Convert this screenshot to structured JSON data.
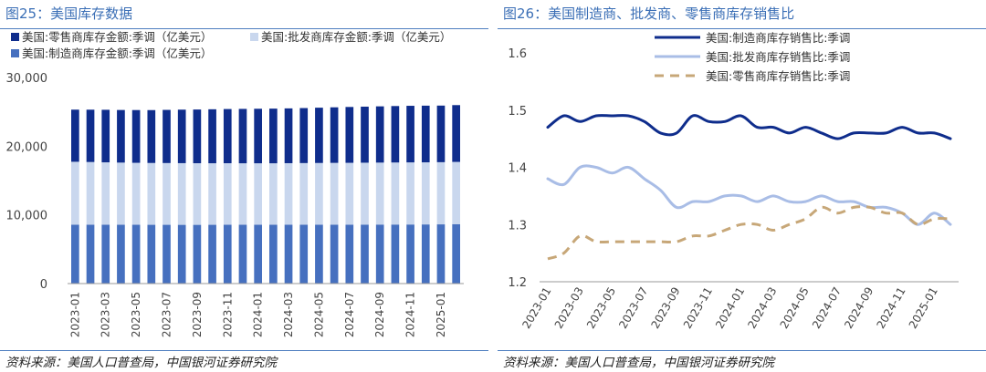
{
  "left": {
    "title": "图25：美国库存数据",
    "source": "资料来源：美国人口普查局，中国银河证券研究院"
  },
  "right": {
    "title": "图26：美国制造商、批发商、零售商库存销售比",
    "source": "资料来源：美国人口普查局，中国银河证券研究院"
  },
  "colors": {
    "title_blue": "#3b6fb6",
    "bar_retail": "#0f2d8c",
    "bar_wholesale": "#c9d7ee",
    "bar_manufacturing": "#4670bf",
    "line_manufacturing": "#0f2d8c",
    "line_wholesale": "#a9bde6",
    "line_retail": "#c7a778"
  },
  "chart_data": [
    {
      "type": "bar",
      "stacked": true,
      "categories": [
        "2023-01",
        "2023-02",
        "2023-03",
        "2023-04",
        "2023-05",
        "2023-06",
        "2023-07",
        "2023-08",
        "2023-09",
        "2023-10",
        "2023-11",
        "2023-12",
        "2024-01",
        "2024-02",
        "2024-03",
        "2024-04",
        "2024-05",
        "2024-06",
        "2024-07",
        "2024-08",
        "2024-09",
        "2024-10",
        "2024-11",
        "2024-12",
        "2025-01",
        "2025-02"
      ],
      "tick_labels": [
        "2023-01",
        "2023-03",
        "2023-05",
        "2023-07",
        "2023-09",
        "2023-11",
        "2024-01",
        "2024-03",
        "2024-05",
        "2024-07",
        "2024-09",
        "2024-11",
        "2025-01"
      ],
      "series": [
        {
          "name": "美国:制造商库存金额:季调（亿美元）",
          "values": [
            8580,
            8575,
            8570,
            8560,
            8560,
            8555,
            8555,
            8550,
            8550,
            8555,
            8560,
            8560,
            8560,
            8560,
            8565,
            8570,
            8575,
            8580,
            8580,
            8585,
            8590,
            8595,
            8600,
            8610,
            8620,
            8650
          ]
        },
        {
          "name": "美国:批发商库存金额:季调（亿美元）",
          "values": [
            9150,
            9120,
            9080,
            9050,
            9020,
            9000,
            8990,
            8980,
            8970,
            8960,
            8960,
            8950,
            8950,
            8950,
            8960,
            8970,
            8980,
            8990,
            9000,
            9010,
            9020,
            9030,
            9040,
            9040,
            9050,
            9060
          ]
        },
        {
          "name": "美国:零售商库存金额:季调（亿美元）",
          "values": [
            7590,
            7620,
            7650,
            7660,
            7680,
            7700,
            7740,
            7790,
            7820,
            7860,
            7890,
            7920,
            7940,
            7960,
            7980,
            8010,
            8050,
            8090,
            8130,
            8160,
            8190,
            8220,
            8240,
            8250,
            8240,
            8270
          ]
        }
      ],
      "legend": {
        "series_order": [
          2,
          1,
          0
        ],
        "rows": [
          [
            "美国:零售商库存金额:季调（亿美元）",
            "美国:批发商库存金额:季调（亿美元）"
          ],
          [
            "美国:制造商库存金额:季调（亿美元）"
          ]
        ]
      },
      "ylim": [
        0,
        30000
      ],
      "yticks": [
        0,
        10000,
        20000,
        30000
      ],
      "ytick_labels": [
        "0",
        "10,000",
        "20,000",
        "30,000"
      ],
      "legend_position": "top-left",
      "grid": false
    },
    {
      "type": "line",
      "x": [
        "2023-01",
        "2023-02",
        "2023-03",
        "2023-04",
        "2023-05",
        "2023-06",
        "2023-07",
        "2023-08",
        "2023-09",
        "2023-10",
        "2023-11",
        "2023-12",
        "2024-01",
        "2024-02",
        "2024-03",
        "2024-04",
        "2024-05",
        "2024-06",
        "2024-07",
        "2024-08",
        "2024-09",
        "2024-10",
        "2024-11",
        "2024-12",
        "2025-01",
        "2025-02"
      ],
      "tick_labels": [
        "2023-01",
        "2023-03",
        "2023-05",
        "2023-07",
        "2023-09",
        "2023-11",
        "2024-01",
        "2024-03",
        "2024-05",
        "2024-07",
        "2024-09",
        "2024-11",
        "2025-01"
      ],
      "series": [
        {
          "name": "美国:制造商库存销售比:季调",
          "style": "solid",
          "width": 3,
          "values": [
            1.47,
            1.49,
            1.48,
            1.49,
            1.49,
            1.49,
            1.48,
            1.46,
            1.46,
            1.49,
            1.48,
            1.48,
            1.49,
            1.47,
            1.47,
            1.46,
            1.47,
            1.46,
            1.45,
            1.46,
            1.46,
            1.46,
            1.47,
            1.46,
            1.46,
            1.45
          ]
        },
        {
          "name": "美国:批发商库存销售比:季调",
          "style": "solid",
          "width": 3,
          "values": [
            1.38,
            1.37,
            1.4,
            1.4,
            1.39,
            1.4,
            1.38,
            1.36,
            1.33,
            1.34,
            1.34,
            1.35,
            1.35,
            1.34,
            1.35,
            1.34,
            1.34,
            1.35,
            1.34,
            1.34,
            1.33,
            1.33,
            1.32,
            1.3,
            1.32,
            1.3
          ]
        },
        {
          "name": "美国:零售商库存销售比:季调",
          "style": "dashed",
          "width": 3,
          "values": [
            1.24,
            1.25,
            1.28,
            1.27,
            1.27,
            1.27,
            1.27,
            1.27,
            1.27,
            1.28,
            1.28,
            1.29,
            1.3,
            1.3,
            1.29,
            1.3,
            1.31,
            1.33,
            1.32,
            1.33,
            1.33,
            1.32,
            1.32,
            1.3,
            1.31,
            1.31
          ]
        }
      ],
      "ylim": [
        1.2,
        1.6
      ],
      "yticks": [
        1.2,
        1.3,
        1.4,
        1.5,
        1.6
      ],
      "ytick_labels": [
        "1.2",
        "1.3",
        "1.4",
        "1.5",
        "1.6"
      ],
      "legend_position": "top-center",
      "grid": false
    }
  ]
}
